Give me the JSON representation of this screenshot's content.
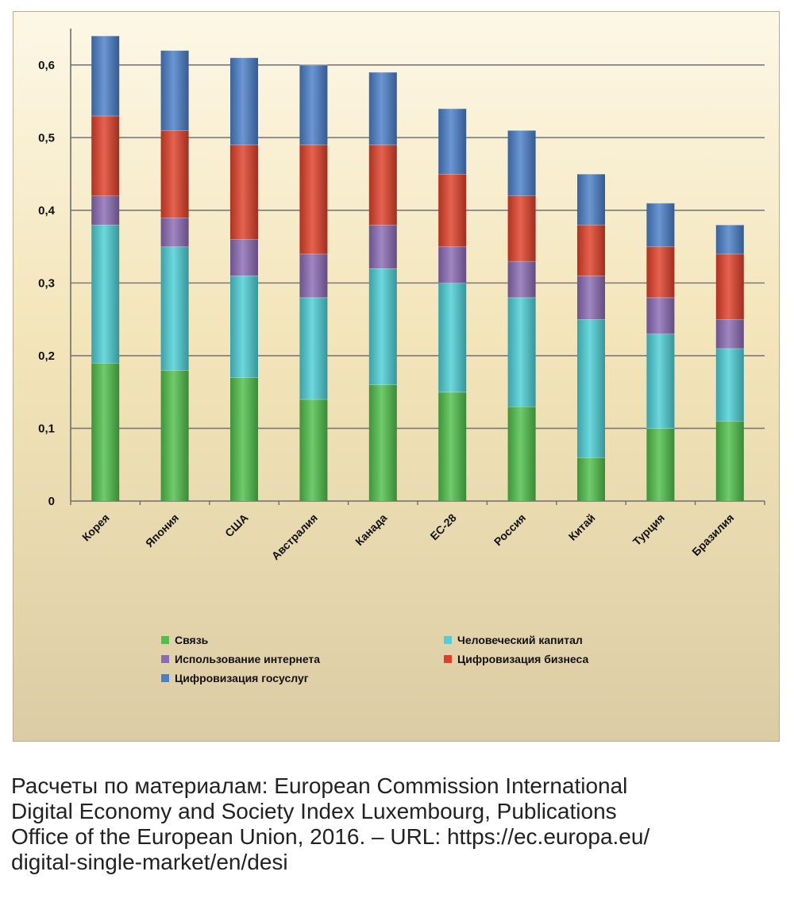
{
  "chart_data": {
    "type": "bar",
    "stacked": true,
    "categories": [
      "Корея",
      "Япония",
      "США",
      "Австралия",
      "Канада",
      "ЕС-28",
      "Россия",
      "Китай",
      "Турция",
      "Бразилия"
    ],
    "series": [
      {
        "name": "Связь",
        "color": "#4fbf4a",
        "values": [
          0.19,
          0.18,
          0.17,
          0.14,
          0.16,
          0.15,
          0.13,
          0.06,
          0.1,
          0.11
        ]
      },
      {
        "name": "Человеческий капитал",
        "color": "#4ccfd6",
        "values": [
          0.19,
          0.17,
          0.14,
          0.14,
          0.16,
          0.15,
          0.15,
          0.19,
          0.13,
          0.1
        ]
      },
      {
        "name": "Использование интернета",
        "color": "#8b6bb5",
        "values": [
          0.04,
          0.04,
          0.05,
          0.06,
          0.06,
          0.05,
          0.05,
          0.06,
          0.05,
          0.04
        ]
      },
      {
        "name": "Цифровизация бизнеса",
        "color": "#e0402a",
        "values": [
          0.11,
          0.12,
          0.13,
          0.15,
          0.11,
          0.1,
          0.09,
          0.07,
          0.07,
          0.09
        ]
      },
      {
        "name": "Цифровизация госуслуг",
        "color": "#4a7fc8",
        "values": [
          0.11,
          0.11,
          0.12,
          0.11,
          0.1,
          0.09,
          0.09,
          0.07,
          0.06,
          0.04
        ]
      }
    ],
    "ylim": [
      0,
      0.65
    ],
    "yticks": [
      0,
      0.1,
      0.2,
      0.3,
      0.4,
      0.5,
      0.6
    ],
    "ytick_labels": [
      "0",
      "0,1",
      "0,2",
      "0,3",
      "0,4",
      "0,5",
      "0,6"
    ],
    "grid": true,
    "legend_position": "bottom",
    "title": "",
    "xlabel": "",
    "ylabel": ""
  },
  "legend": {
    "items": [
      {
        "label": "Связь",
        "color": "#4fbf4a"
      },
      {
        "label": "Человеческий капитал",
        "color": "#4ccfd6"
      },
      {
        "label": "Использование интернета",
        "color": "#8b6bb5"
      },
      {
        "label": "Цифровизация бизнеса",
        "color": "#e0402a"
      },
      {
        "label": "Цифровизация госуслуг",
        "color": "#4a7fc8"
      }
    ]
  },
  "caption": {
    "lines": [
      "Расчеты по материалам: European Commission International",
      "Digital Economy and Society Index Luxembourg, Publications",
      "Office of the European Union, 2016. – URL: https://ec.europa.eu/",
      "digital-single-market/en/desi"
    ]
  },
  "colors": {
    "background_top": "#fdf7e6",
    "background_mid": "#f3e5b9",
    "background_bottom": "#dccca5",
    "gridline": "#7a7a7a"
  }
}
